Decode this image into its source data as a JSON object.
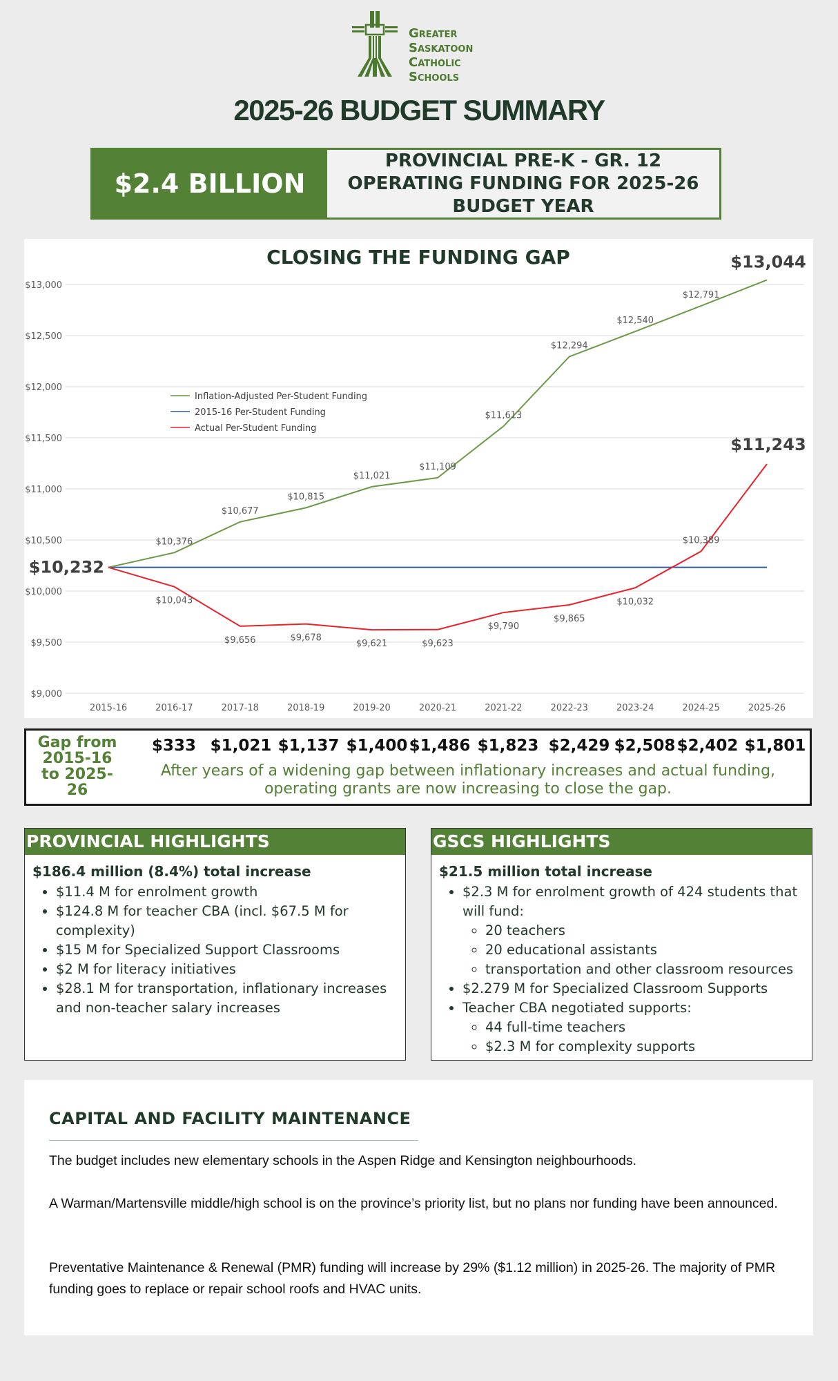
{
  "logo": {
    "org_lines": [
      "Greater",
      "Saskatoon",
      "Catholic",
      "Schools"
    ]
  },
  "page_title": "2025-26 BUDGET SUMMARY",
  "banner": {
    "amount": "$2.4 BILLION",
    "description": "PROVINCIAL PRE-K - GR. 12 OPERATING FUNDING FOR 2025-26 BUDGET YEAR"
  },
  "colors": {
    "green": "#538135",
    "dark_green": "#1f3a28",
    "blue": "#2e5ca8",
    "red": "#e8232a"
  },
  "chart_data": {
    "type": "line",
    "title": "CLOSING THE FUNDING GAP",
    "categories": [
      "2015-16",
      "2016-17",
      "2017-18",
      "2018-19",
      "2019-20",
      "2020-21",
      "2021-22",
      "2022-23",
      "2023-24",
      "2024-25",
      "2025-26"
    ],
    "ylim": [
      9000,
      13000
    ],
    "yticks": [
      "$9,000",
      "$9,500",
      "$10,000",
      "$10,500",
      "$11,000",
      "$11,500",
      "$12,000",
      "$12,500",
      "$13,000"
    ],
    "legend_position": "upper-left",
    "series": [
      {
        "name": "Inflation-Adjusted Per-Student Funding",
        "color": "#6a9a45",
        "values": [
          10232,
          10376,
          10677,
          10815,
          11021,
          11109,
          11613,
          12294,
          12540,
          12791,
          13044
        ],
        "labels": [
          "$10,232",
          "$10,376",
          "$10,677",
          "$10,815",
          "$11,021",
          "$11,109",
          "$11,613",
          "$12,294",
          "$12,540",
          "$12,791",
          "$13,044"
        ]
      },
      {
        "name": "2015-16 Per-Student Funding",
        "color": "#2e5ca8",
        "values": [
          10232,
          10232,
          10232,
          10232,
          10232,
          10232,
          10232,
          10232,
          10232,
          10232,
          10232
        ]
      },
      {
        "name": "Actual Per-Student Funding",
        "color": "#e8232a",
        "values": [
          10232,
          10043,
          9656,
          9678,
          9621,
          9623,
          9790,
          9865,
          10032,
          10389,
          11243
        ],
        "labels": [
          "",
          "$10,043",
          "$9,656",
          "$9,678",
          "$9,621",
          "$9,623",
          "$9,790",
          "$9,865",
          "$10,032",
          "$10,389",
          "$11,243"
        ]
      }
    ],
    "start_label": "$10,232"
  },
  "gap": {
    "label": "Gap from 2015-16 to 2025-26",
    "values": [
      "$333",
      "$1,021",
      "$1,137",
      "$1,400",
      "$1,486",
      "$1,823",
      "$2,429",
      "$2,508",
      "$2,402",
      "$1,801"
    ],
    "note": "After years of a widening gap between inflationary increases and actual funding, operating grants are now increasing to close the gap."
  },
  "provincial": {
    "heading": "PROVINCIAL HIGHLIGHTS",
    "lead": "$186.4 million (8.4%) total increase",
    "items": [
      "$11.4 M for enrolment growth",
      "$124.8 M for teacher CBA (incl. $67.5 M for complexity)",
      "$15 M for Specialized Support Classrooms",
      "$2 M for literacy initiatives",
      "$28.1 M for transportation, inflationary increases and non-teacher salary increases"
    ]
  },
  "gscs": {
    "heading": "GSCS HIGHLIGHTS",
    "lead": "$21.5 million total increase",
    "item1": "$2.3 M for enrolment growth of 424 students that will fund:",
    "item1_sub": [
      "20 teachers",
      "20 educational assistants",
      "transportation and other classroom resources"
    ],
    "item2": "$2.279 M for Specialized Classroom Supports",
    "item3": "Teacher CBA negotiated supports:",
    "item3_sub": [
      "44 full-time teachers",
      "$2.3 M for complexity supports"
    ]
  },
  "capital": {
    "title": "CAPITAL AND FACILITY MAINTENANCE",
    "paragraphs": [
      "The budget includes new elementary schools in the Aspen Ridge and Kensington neighbourhoods.",
      "A Warman/Martensville middle/high school is on the province’s priority list, but no plans nor funding have been announced.",
      "Preventative Maintenance & Renewal (PMR) funding will increase by 29% ($1.12 million) in 2025-26. The majority of PMR funding goes to replace or repair school roofs and HVAC units."
    ]
  }
}
